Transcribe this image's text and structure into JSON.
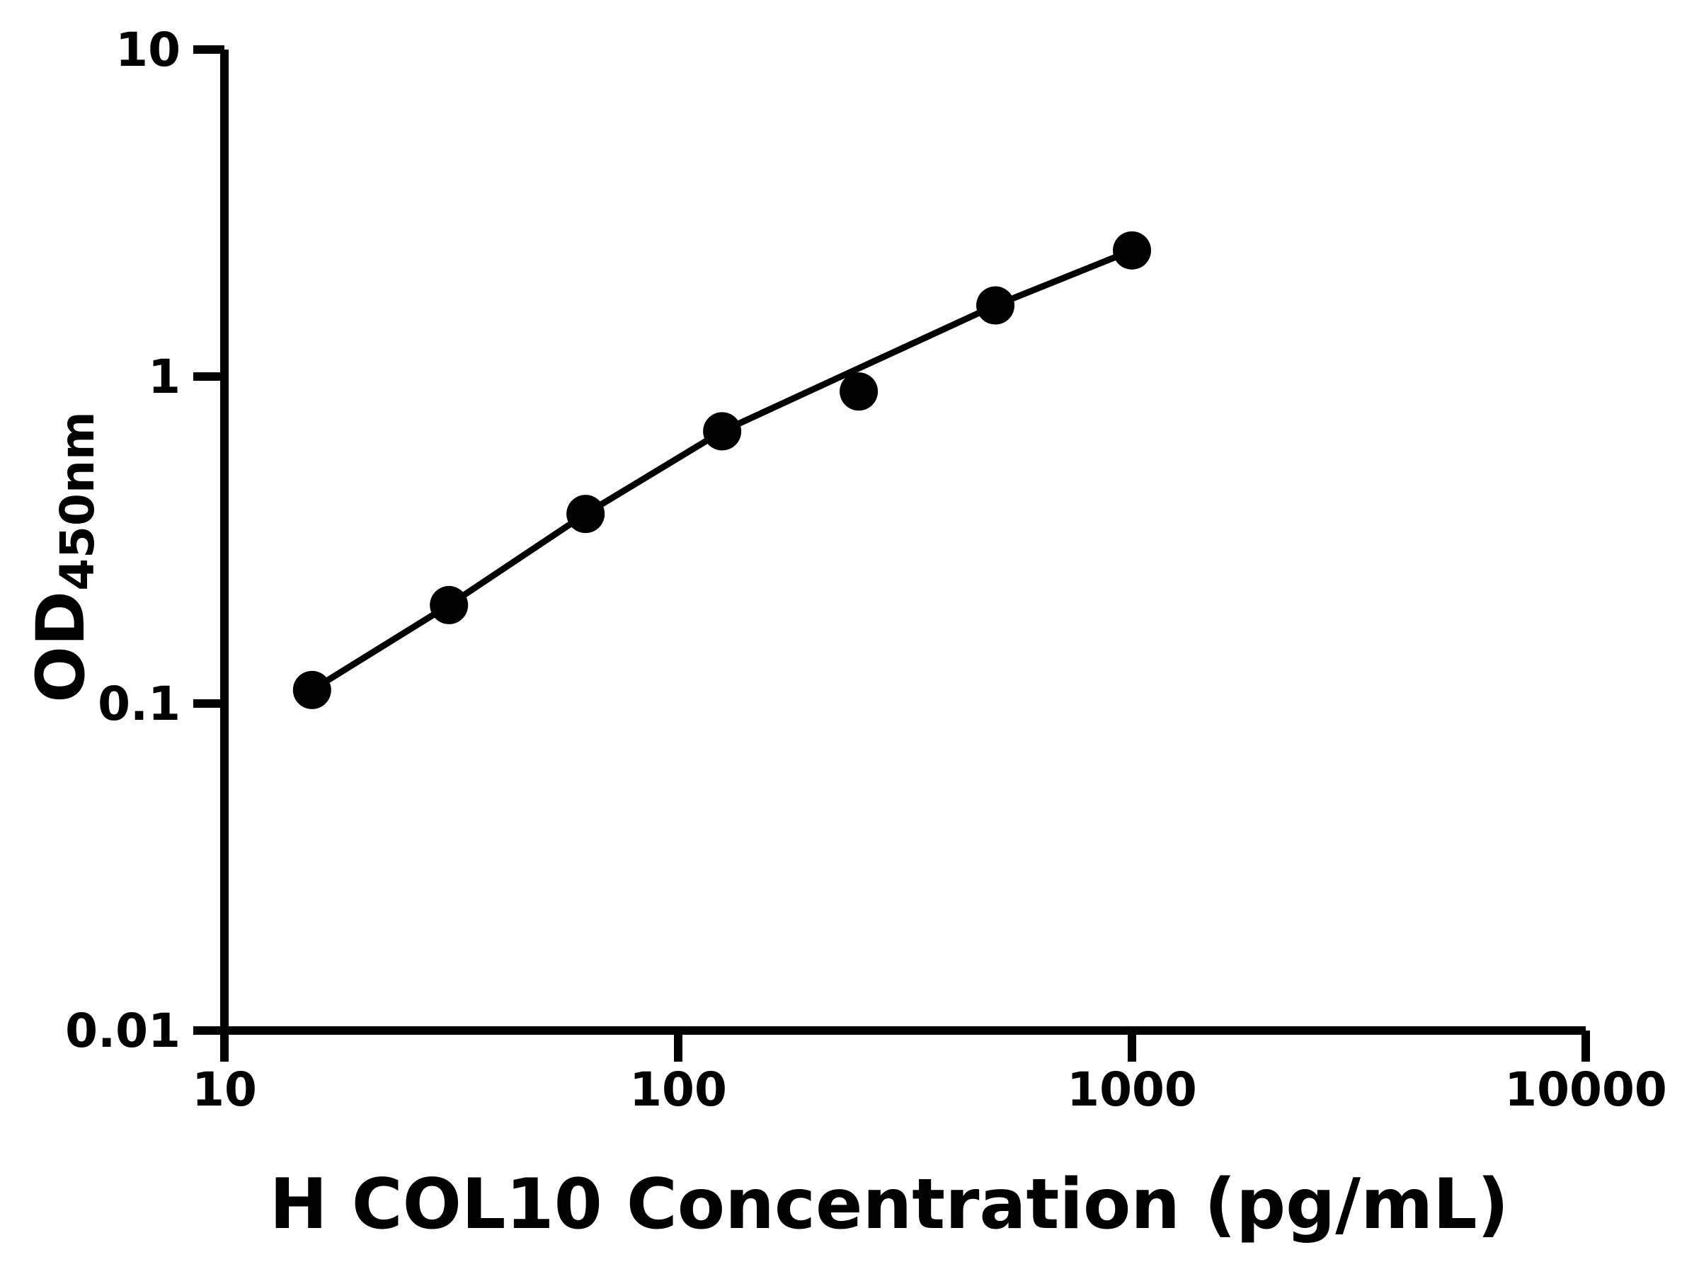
{
  "figure": {
    "background": "#ffffff"
  },
  "chart_data": {
    "type": "scatter",
    "title": "",
    "xlabel": "H COL10 Concentration (pg/mL)",
    "ylabel_main": "OD",
    "ylabel_sub": "450nm",
    "x_scale": "log",
    "y_scale": "log",
    "xlim": [
      10,
      10000
    ],
    "ylim": [
      0.01,
      10
    ],
    "grid": false,
    "legend": null,
    "axis_color": "#000000",
    "marker_color": "#000000",
    "line_color": "#000000",
    "x_ticks": [
      {
        "value": 10,
        "label": "10"
      },
      {
        "value": 100,
        "label": "100"
      },
      {
        "value": 1000,
        "label": "1000"
      },
      {
        "value": 10000,
        "label": "10000"
      }
    ],
    "y_ticks": [
      {
        "value": 10,
        "label": "10"
      },
      {
        "value": 1,
        "label": "1"
      },
      {
        "value": 0.1,
        "label": "0.1"
      },
      {
        "value": 0.01,
        "label": "0.01"
      }
    ],
    "points": [
      {
        "x": 15.6,
        "y": 0.11
      },
      {
        "x": 31.25,
        "y": 0.2
      },
      {
        "x": 62.5,
        "y": 0.38
      },
      {
        "x": 125,
        "y": 0.68
      },
      {
        "x": 250,
        "y": 0.9
      },
      {
        "x": 500,
        "y": 1.65
      },
      {
        "x": 1000,
        "y": 2.43
      }
    ],
    "fit_line": [
      {
        "x": 15.6,
        "y": 0.11
      },
      {
        "x": 31.25,
        "y": 0.2
      },
      {
        "x": 62.5,
        "y": 0.38
      },
      {
        "x": 125,
        "y": 0.68
      },
      {
        "x": 250,
        "y": 1.06
      },
      {
        "x": 500,
        "y": 1.65
      },
      {
        "x": 1000,
        "y": 2.43
      }
    ]
  }
}
